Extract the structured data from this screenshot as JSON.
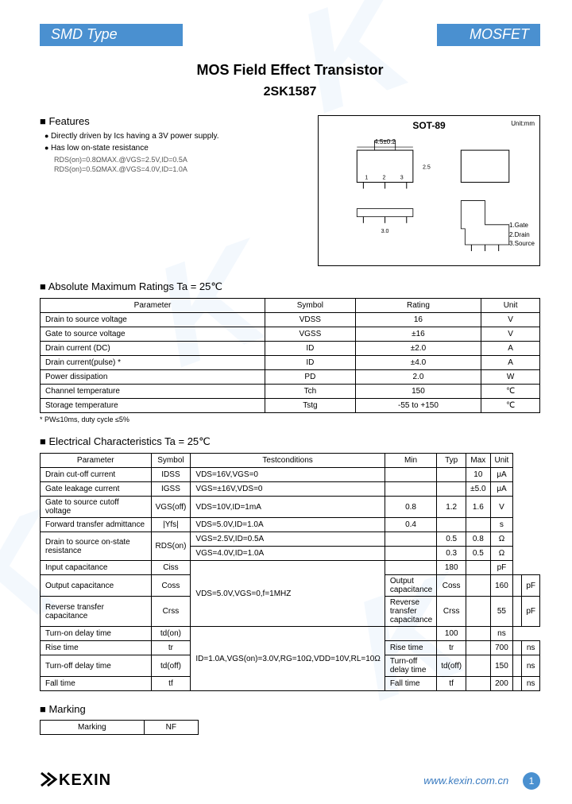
{
  "header": {
    "left": "SMD Type",
    "right": "MOSFET"
  },
  "title": "MOS Field Effect  Transistor",
  "part_number": "2SK1587",
  "package": {
    "label": "SOT-89",
    "unit_note": "Unit:mm",
    "dims": {
      "top_w": "4.5±0.2",
      "body_h": "2.5±0.2",
      "lead": "3.0±0.2"
    },
    "pins": [
      "1.Gate",
      "2.Drain",
      "3.Source"
    ]
  },
  "features": {
    "title": "Features",
    "items": [
      {
        "text": "Directly driven by Ics having a 3V power supply."
      },
      {
        "text": "Has low on-state resistance",
        "subs": [
          "RDS(on)=0.8ΩMAX.@VGS=2.5V,ID=0.5A",
          "RDS(on)=0.5ΩMAX.@VGS=4.0V,ID=1.0A"
        ]
      }
    ]
  },
  "abs_max": {
    "title": "Absolute Maximum Ratings Ta = 25℃",
    "columns": [
      "Parameter",
      "Symbol",
      "Rating",
      "Unit"
    ],
    "rows": [
      [
        "Drain to source voltage",
        "VDSS",
        "16",
        "V"
      ],
      [
        "Gate to source voltage",
        "VGSS",
        "±16",
        "V"
      ],
      [
        "Drain current (DC)",
        "ID",
        "±2.0",
        "A"
      ],
      [
        "Drain current(pulse) *",
        "ID",
        "±4.0",
        "A"
      ],
      [
        "Power dissipation",
        "PD",
        "2.0",
        "W"
      ],
      [
        "Channel  temperature",
        "Tch",
        "150",
        "℃"
      ],
      [
        "Storage temperature",
        "Tstg",
        "-55 to +150",
        "℃"
      ]
    ],
    "note": "* PW≤10ms, duty cycle ≤5%"
  },
  "elec": {
    "title": "Electrical Characteristics Ta = 25℃",
    "columns": [
      "Parameter",
      "Symbol",
      "Testconditions",
      "Min",
      "Typ",
      "Max",
      "Unit"
    ],
    "rows": [
      {
        "p": "Drain cut-off current",
        "s": "IDSS",
        "c": "VDS=16V,VGS=0",
        "min": "",
        "typ": "",
        "max": "10",
        "u": "μA",
        "c_rowspan": 1
      },
      {
        "p": "Gate leakage current",
        "s": "IGSS",
        "c": "VGS=±16V,VDS=0",
        "min": "",
        "typ": "",
        "max": "±5.0",
        "u": "μA",
        "c_rowspan": 1
      },
      {
        "p": "Gate to source cutoff voltage",
        "s": "VGS(off)",
        "c": "VDS=10V,ID=1mA",
        "min": "0.8",
        "typ": "1.2",
        "max": "1.6",
        "u": "V",
        "c_rowspan": 1
      },
      {
        "p": "Forward transfer admittance",
        "s": "|Yfs|",
        "c": "VDS=5.0V,ID=1.0A",
        "min": "0.4",
        "typ": "",
        "max": "",
        "u": "s",
        "c_rowspan": 1
      },
      {
        "p": "Drain to source on-state resistance",
        "s": "RDS(on)",
        "c": "VGS=2.5V,ID=0.5A",
        "min": "",
        "typ": "0.5",
        "max": "0.8",
        "u": "Ω",
        "p_rowspan": 2,
        "s_rowspan": 2
      },
      {
        "c": "VGS=4.0V,ID=1.0A",
        "min": "",
        "typ": "0.3",
        "max": "0.5",
        "u": "Ω",
        "sub": true
      },
      {
        "p": "Input capacitance",
        "s": "Ciss",
        "c": "VDS=5.0V,VGS=0,f=1MHZ",
        "min": "",
        "typ": "180",
        "max": "",
        "u": "pF",
        "c_rowspan": 3
      },
      {
        "p": "Output capacitance",
        "s": "Coss",
        "min": "",
        "typ": "160",
        "max": "",
        "u": "pF",
        "sub_c": true
      },
      {
        "p": "Reverse transfer capacitance",
        "s": "Crss",
        "min": "",
        "typ": "55",
        "max": "",
        "u": "pF",
        "sub_c": true
      },
      {
        "p": "Turn-on delay time",
        "s": "td(on)",
        "c": "ID=1.0A,VGS(on)=3.0V,RG=10Ω,VDD=10V,RL=10Ω",
        "min": "",
        "typ": "100",
        "max": "",
        "u": "ns",
        "c_rowspan": 4
      },
      {
        "p": "Rise time",
        "s": "tr",
        "min": "",
        "typ": "700",
        "max": "",
        "u": "ns",
        "sub_c": true
      },
      {
        "p": "Turn-off delay time",
        "s": "td(off)",
        "min": "",
        "typ": "150",
        "max": "",
        "u": "ns",
        "sub_c": true
      },
      {
        "p": "Fall time",
        "s": "tf",
        "min": "",
        "typ": "200",
        "max": "",
        "u": "ns",
        "sub_c": true
      }
    ]
  },
  "marking": {
    "title": "Marking",
    "label": "Marking",
    "value": "NF"
  },
  "footer": {
    "logo": "KEXIN",
    "url": "www.kexin.com.cn",
    "page": "1"
  },
  "colors": {
    "bar": "#4a90d0",
    "wm": "rgba(100,170,230,0.08)"
  }
}
